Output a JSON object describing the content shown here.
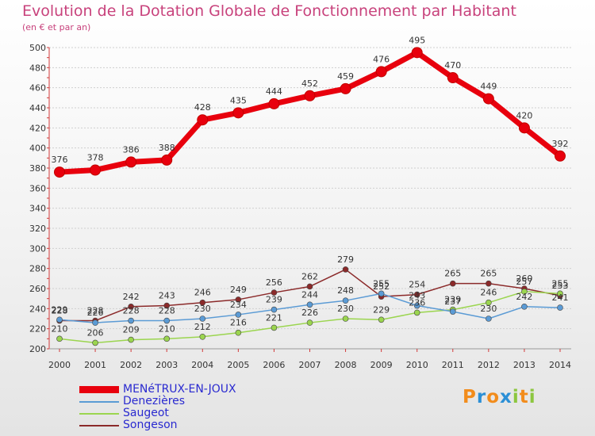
{
  "chart_data": {
    "type": "line",
    "title": "Evolution de la Dotation Globale de Fonctionnement par Habitant",
    "subtitle": "(en € et par an)",
    "xlabel": "",
    "ylabel": "",
    "categories": [
      "2000",
      "2001",
      "2002",
      "2003",
      "2004",
      "2005",
      "2006",
      "2007",
      "2008",
      "2009",
      "2010",
      "2011",
      "2012",
      "2013",
      "2014"
    ],
    "ylim": [
      200,
      500
    ],
    "yticks": [
      "200",
      "220",
      "240",
      "260",
      "280",
      "300",
      "320",
      "340",
      "360",
      "380",
      "400",
      "420",
      "440",
      "460",
      "480",
      "500"
    ],
    "grid": true,
    "legend_position": "bottom-left",
    "series": [
      {
        "name": "MENéTRUX-EN-JOUX",
        "color": "#e8000d",
        "values": [
          376,
          378,
          386,
          388,
          428,
          435,
          444,
          452,
          459,
          476,
          495,
          470,
          449,
          420,
          392
        ]
      },
      {
        "name": "Denezières",
        "color": "#5b9bd5",
        "values": [
          229,
          226,
          228,
          228,
          230,
          234,
          239,
          244,
          248,
          255,
          243,
          237,
          230,
          242,
          241
        ]
      },
      {
        "name": "Saugeot",
        "color": "#9bd54f",
        "values": [
          210,
          206,
          209,
          210,
          212,
          216,
          221,
          226,
          230,
          229,
          236,
          239,
          246,
          257,
          255
        ]
      },
      {
        "name": "Songeson",
        "color": "#8b2a2a",
        "values": [
          228,
          228,
          242,
          243,
          246,
          249,
          256,
          262,
          279,
          252,
          254,
          265,
          265,
          260,
          253
        ]
      }
    ]
  },
  "logo": {
    "letters": [
      "P",
      "r",
      "o",
      "x",
      "i",
      "t",
      "i"
    ],
    "colors": [
      "#f28c1c",
      "#2b8fd6",
      "#f28c1c",
      "#2b8fd6",
      "#8cc63f",
      "#f28c1c",
      "#8cc63f"
    ]
  }
}
